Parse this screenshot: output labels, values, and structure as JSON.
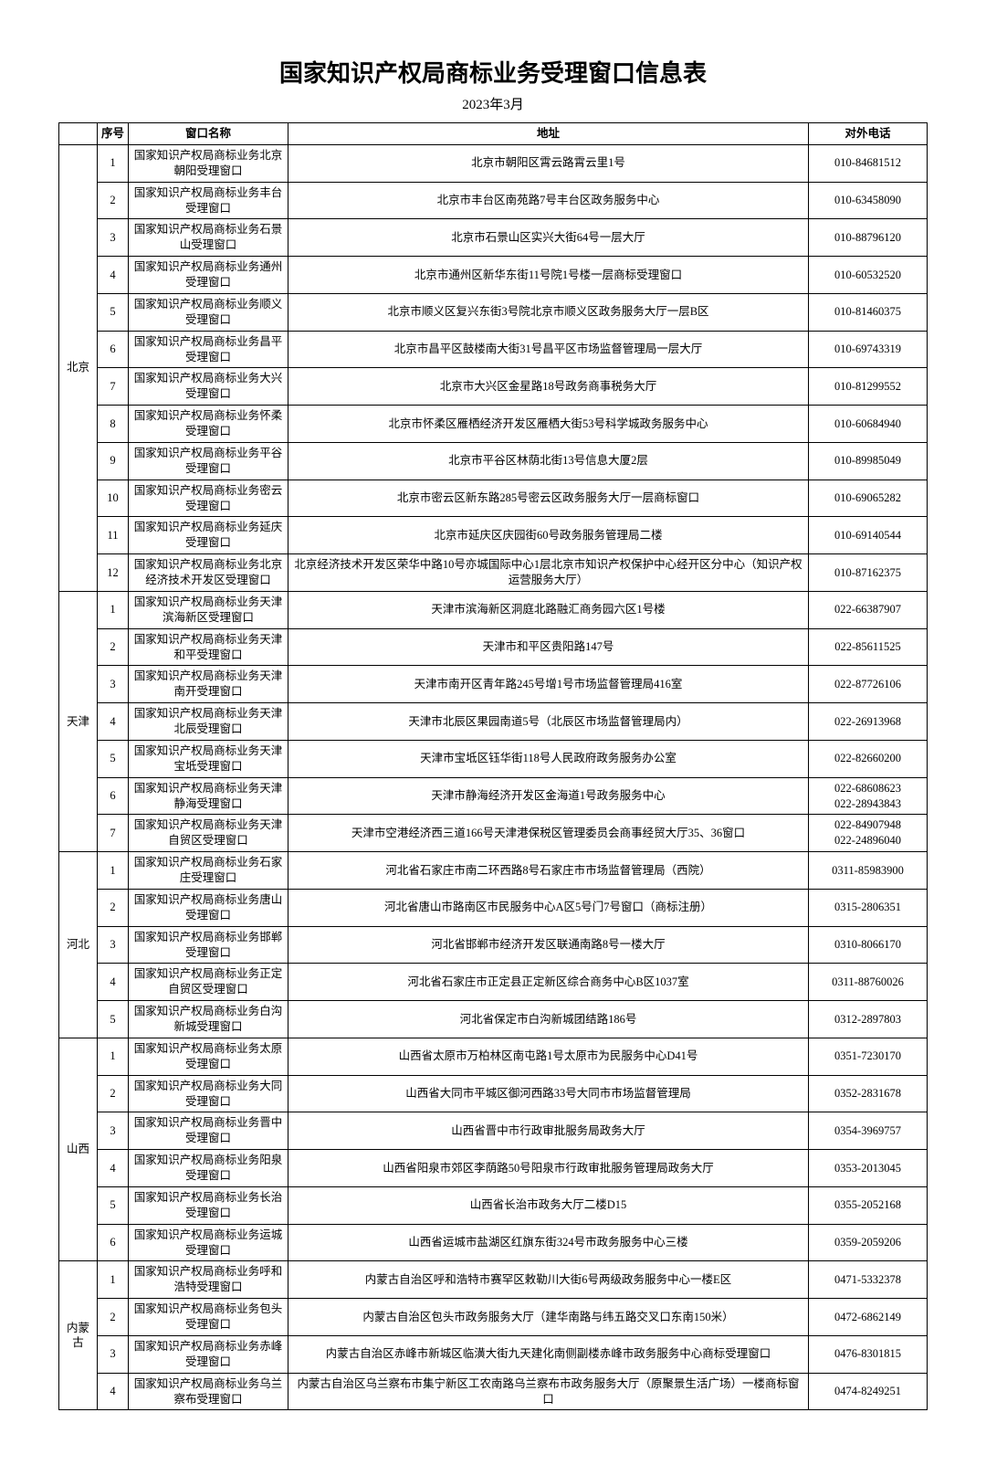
{
  "title": "国家知识产权局商标业务受理窗口信息表",
  "subtitle": "2023年3月",
  "headers": {
    "seq": "序号",
    "name": "窗口名称",
    "addr": "地址",
    "phone": "对外电话"
  },
  "regions": [
    {
      "region": "北京",
      "rows": [
        {
          "seq": "1",
          "name": "国家知识产权局商标业务北京朝阳受理窗口",
          "addr": "北京市朝阳区霄云路霄云里1号",
          "phone": "010-84681512"
        },
        {
          "seq": "2",
          "name": "国家知识产权局商标业务丰台受理窗口",
          "addr": "北京市丰台区南苑路7号丰台区政务服务中心",
          "phone": "010-63458090"
        },
        {
          "seq": "3",
          "name": "国家知识产权局商标业务石景山受理窗口",
          "addr": "北京市石景山区实兴大街64号一层大厅",
          "phone": "010-88796120"
        },
        {
          "seq": "4",
          "name": "国家知识产权局商标业务通州受理窗口",
          "addr": "北京市通州区新华东街11号院1号楼一层商标受理窗口",
          "phone": "010-60532520"
        },
        {
          "seq": "5",
          "name": "国家知识产权局商标业务顺义受理窗口",
          "addr": "北京市顺义区复兴东街3号院北京市顺义区政务服务大厅一层B区",
          "phone": "010-81460375"
        },
        {
          "seq": "6",
          "name": "国家知识产权局商标业务昌平受理窗口",
          "addr": "北京市昌平区鼓楼南大街31号昌平区市场监督管理局一层大厅",
          "phone": "010-69743319"
        },
        {
          "seq": "7",
          "name": "国家知识产权局商标业务大兴受理窗口",
          "addr": "北京市大兴区金星路18号政务商事税务大厅",
          "phone": "010-81299552"
        },
        {
          "seq": "8",
          "name": "国家知识产权局商标业务怀柔受理窗口",
          "addr": "北京市怀柔区雁栖经济开发区雁栖大街53号科学城政务服务中心",
          "phone": "010-60684940"
        },
        {
          "seq": "9",
          "name": "国家知识产权局商标业务平谷受理窗口",
          "addr": "北京市平谷区林荫北街13号信息大厦2层",
          "phone": "010-89985049"
        },
        {
          "seq": "10",
          "name": "国家知识产权局商标业务密云受理窗口",
          "addr": "北京市密云区新东路285号密云区政务服务大厅一层商标窗口",
          "phone": "010-69065282"
        },
        {
          "seq": "11",
          "name": "国家知识产权局商标业务延庆受理窗口",
          "addr": "北京市延庆区庆园街60号政务服务管理局二楼",
          "phone": "010-69140544"
        },
        {
          "seq": "12",
          "name": "国家知识产权局商标业务北京经济技术开发区受理窗口",
          "addr": "北京经济技术开发区荣华中路10号亦城国际中心1层北京市知识产权保护中心经开区分中心（知识产权运营服务大厅）",
          "phone": "010-87162375"
        }
      ]
    },
    {
      "region": "天津",
      "rows": [
        {
          "seq": "1",
          "name": "国家知识产权局商标业务天津滨海新区受理窗口",
          "addr": "天津市滨海新区洞庭北路融汇商务园六区1号楼",
          "phone": "022-66387907"
        },
        {
          "seq": "2",
          "name": "国家知识产权局商标业务天津和平受理窗口",
          "addr": "天津市和平区贵阳路147号",
          "phone": "022-85611525"
        },
        {
          "seq": "3",
          "name": "国家知识产权局商标业务天津南开受理窗口",
          "addr": "天津市南开区青年路245号增1号市场监督管理局416室",
          "phone": "022-87726106"
        },
        {
          "seq": "4",
          "name": "国家知识产权局商标业务天津北辰受理窗口",
          "addr": "天津市北辰区果园南道5号（北辰区市场监督管理局内）",
          "phone": "022-26913968"
        },
        {
          "seq": "5",
          "name": "国家知识产权局商标业务天津宝坻受理窗口",
          "addr": "天津市宝坻区钰华街118号人民政府政务服务办公室",
          "phone": "022-82660200"
        },
        {
          "seq": "6",
          "name": "国家知识产权局商标业务天津静海受理窗口",
          "addr": "天津市静海经济开发区金海道1号政务服务中心",
          "phone": "022-68608623\n022-28943843"
        },
        {
          "seq": "7",
          "name": "国家知识产权局商标业务天津自贸区受理窗口",
          "addr": "天津市空港经济西三道166号天津港保税区管理委员会商事经贸大厅35、36窗口",
          "phone": "022-84907948\n022-24896040"
        }
      ]
    },
    {
      "region": "河北",
      "rows": [
        {
          "seq": "1",
          "name": "国家知识产权局商标业务石家庄受理窗口",
          "addr": "河北省石家庄市南二环西路8号石家庄市市场监督管理局（西院）",
          "phone": "0311-85983900"
        },
        {
          "seq": "2",
          "name": "国家知识产权局商标业务唐山受理窗口",
          "addr": "河北省唐山市路南区市民服务中心A区5号门7号窗口（商标注册）",
          "phone": "0315-2806351"
        },
        {
          "seq": "3",
          "name": "国家知识产权局商标业务邯郸受理窗口",
          "addr": "河北省邯郸市经济开发区联通南路8号一楼大厅",
          "phone": "0310-8066170"
        },
        {
          "seq": "4",
          "name": "国家知识产权局商标业务正定自贸区受理窗口",
          "addr": "河北省石家庄市正定县正定新区综合商务中心B区1037室",
          "phone": "0311-88760026"
        },
        {
          "seq": "5",
          "name": "国家知识产权局商标业务白沟新城受理窗口",
          "addr": "河北省保定市白沟新城团结路186号",
          "phone": "0312-2897803"
        }
      ]
    },
    {
      "region": "山西",
      "rows": [
        {
          "seq": "1",
          "name": "国家知识产权局商标业务太原受理窗口",
          "addr": "山西省太原市万柏林区南屯路1号太原市为民服务中心D41号",
          "phone": "0351-7230170"
        },
        {
          "seq": "2",
          "name": "国家知识产权局商标业务大同受理窗口",
          "addr": "山西省大同市平城区御河西路33号大同市市场监督管理局",
          "phone": "0352-2831678"
        },
        {
          "seq": "3",
          "name": "国家知识产权局商标业务晋中受理窗口",
          "addr": "山西省晋中市行政审批服务局政务大厅",
          "phone": "0354-3969757"
        },
        {
          "seq": "4",
          "name": "国家知识产权局商标业务阳泉受理窗口",
          "addr": "山西省阳泉市郊区李荫路50号阳泉市行政审批服务管理局政务大厅",
          "phone": "0353-2013045"
        },
        {
          "seq": "5",
          "name": "国家知识产权局商标业务长治受理窗口",
          "addr": "山西省长治市政务大厅二楼D15",
          "phone": "0355-2052168"
        },
        {
          "seq": "6",
          "name": "国家知识产权局商标业务运城受理窗口",
          "addr": "山西省运城市盐湖区红旗东街324号市政务服务中心三楼",
          "phone": "0359-2059206"
        }
      ]
    },
    {
      "region": "内蒙古",
      "rows": [
        {
          "seq": "1",
          "name": "国家知识产权局商标业务呼和浩特受理窗口",
          "addr": "内蒙古自治区呼和浩特市赛罕区敕勒川大街6号两级政务服务中心一楼E区",
          "phone": "0471-5332378"
        },
        {
          "seq": "2",
          "name": "国家知识产权局商标业务包头受理窗口",
          "addr": "内蒙古自治区包头市政务服务大厅（建华南路与纬五路交叉口东南150米）",
          "phone": "0472-6862149"
        },
        {
          "seq": "3",
          "name": "国家知识产权局商标业务赤峰受理窗口",
          "addr": "内蒙古自治区赤峰市新城区临潢大街九天建化南侧副楼赤峰市政务服务中心商标受理窗口",
          "phone": "0476-8301815"
        },
        {
          "seq": "4",
          "name": "国家知识产权局商标业务乌兰察布受理窗口",
          "addr": "内蒙古自治区乌兰察布市集宁新区工农南路乌兰察布市政务服务大厅（原聚景生活广场）一楼商标窗口",
          "phone": "0474-8249251"
        }
      ]
    }
  ]
}
